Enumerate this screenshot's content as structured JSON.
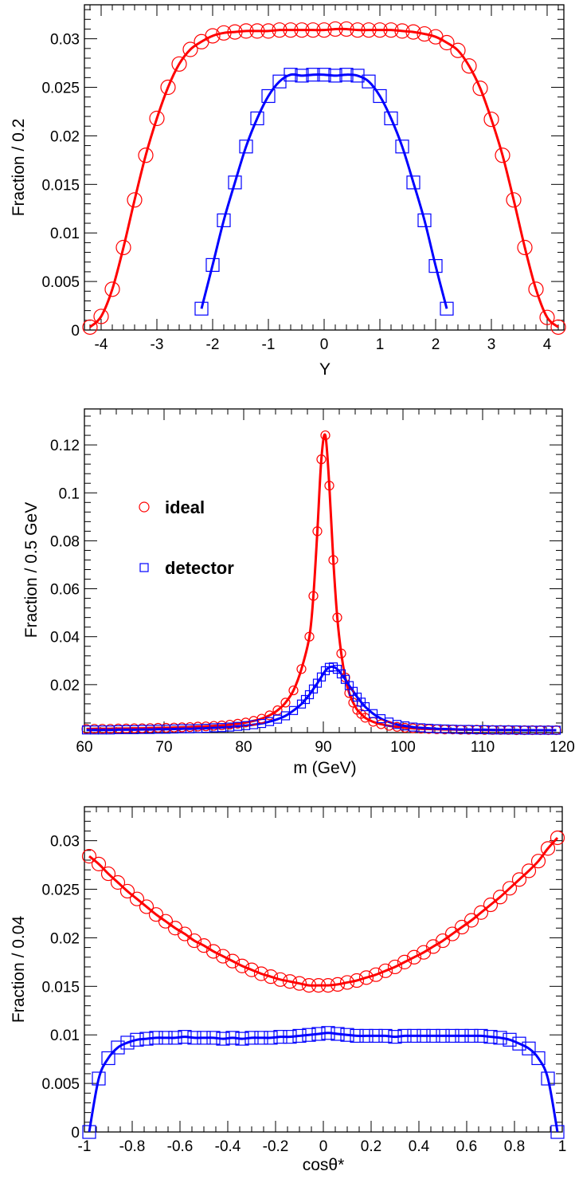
{
  "colors": {
    "ideal": "#ff0000",
    "detector": "#0000ff",
    "axis": "#000000"
  },
  "legend": {
    "placement": "left-middle of middle panel",
    "ideal_label": "ideal",
    "detector_label": "detector"
  },
  "chart_data": [
    {
      "type": "scatter",
      "xlabel": "Y",
      "ylabel": "Fraction / 0.2",
      "xlim": [
        -4.3,
        4.3
      ],
      "ylim": [
        0,
        0.0335
      ],
      "xticks": [
        -4,
        -3,
        -2,
        -1,
        0,
        1,
        2,
        3,
        4
      ],
      "xtick_labels": [
        "-4",
        "-3",
        "-2",
        "-1",
        "0",
        "1",
        "2",
        "3",
        "4"
      ],
      "yticks": [
        0,
        0.005,
        0.01,
        0.015,
        0.02,
        0.025,
        0.03
      ],
      "ytick_labels": [
        "0",
        "0.005",
        "0.01",
        "0.015",
        "0.02",
        "0.025",
        "0.03"
      ],
      "series": [
        {
          "key": "ideal",
          "marker": "circle",
          "x": [
            -4.2,
            -4.0,
            -3.8,
            -3.6,
            -3.4,
            -3.2,
            -3.0,
            -2.8,
            -2.6,
            -2.4,
            -2.2,
            -2.0,
            -1.8,
            -1.6,
            -1.4,
            -1.2,
            -1.0,
            -0.8,
            -0.6,
            -0.4,
            -0.2,
            0.0,
            0.2,
            0.4,
            0.6,
            0.8,
            1.0,
            1.2,
            1.4,
            1.6,
            1.8,
            2.0,
            2.2,
            2.4,
            2.6,
            2.8,
            3.0,
            3.2,
            3.4,
            3.6,
            3.8,
            4.0,
            4.2
          ],
          "y": [
            0.0003,
            0.0014,
            0.0042,
            0.0085,
            0.0134,
            0.018,
            0.0218,
            0.025,
            0.0274,
            0.0289,
            0.0297,
            0.0303,
            0.0306,
            0.0307,
            0.0308,
            0.0308,
            0.0308,
            0.0309,
            0.0309,
            0.0309,
            0.0309,
            0.0309,
            0.031,
            0.031,
            0.0309,
            0.0309,
            0.0309,
            0.0309,
            0.0308,
            0.0307,
            0.0305,
            0.0302,
            0.0296,
            0.0288,
            0.0272,
            0.0249,
            0.0217,
            0.018,
            0.0134,
            0.0085,
            0.0042,
            0.0013,
            0.0003
          ]
        },
        {
          "key": "detector",
          "marker": "square",
          "x": [
            -2.2,
            -2.0,
            -1.8,
            -1.6,
            -1.4,
            -1.2,
            -1.0,
            -0.8,
            -0.6,
            -0.4,
            -0.2,
            0.0,
            0.2,
            0.4,
            0.6,
            0.8,
            1.0,
            1.2,
            1.4,
            1.6,
            1.8,
            2.0,
            2.2
          ],
          "y": [
            0.0022,
            0.0067,
            0.0113,
            0.0152,
            0.0189,
            0.0218,
            0.0241,
            0.0256,
            0.0263,
            0.0262,
            0.0263,
            0.0263,
            0.0262,
            0.0263,
            0.0262,
            0.0256,
            0.0241,
            0.0218,
            0.0189,
            0.0152,
            0.0113,
            0.0066,
            0.0022
          ]
        }
      ]
    },
    {
      "type": "scatter",
      "xlabel": "m (GeV)",
      "ylabel": "Fraction / 0.5 GeV",
      "xlim": [
        60,
        120
      ],
      "ylim": [
        0,
        0.135
      ],
      "xticks": [
        60,
        70,
        80,
        90,
        100,
        110,
        120
      ],
      "xtick_labels": [
        "60",
        "70",
        "80",
        "90",
        "100",
        "110",
        "120"
      ],
      "yticks": [
        0.02,
        0.04,
        0.06,
        0.08,
        0.1,
        0.12
      ],
      "ytick_labels": [
        "0.02",
        "0.04",
        "0.06",
        "0.08",
        "0.1",
        "0.12"
      ],
      "series": [
        {
          "key": "ideal",
          "marker": "circle",
          "x": [
            60.25,
            61.25,
            62.25,
            63.25,
            64.25,
            65.25,
            66.25,
            67.25,
            68.25,
            69.25,
            70.25,
            71.25,
            72.25,
            73.25,
            74.25,
            75.25,
            76.25,
            77.25,
            78.25,
            79.25,
            80.25,
            81.25,
            82.25,
            83.25,
            84.25,
            85.25,
            86.25,
            87.25,
            88.25,
            88.75,
            89.25,
            89.75,
            90.25,
            90.75,
            91.25,
            91.75,
            92.25,
            92.75,
            93.25,
            93.75,
            94.25,
            94.75,
            95.25,
            96.25,
            97.25,
            98.25,
            99.25,
            100.25,
            101.25,
            102.25,
            103.25,
            104.25,
            105.25,
            106.25,
            107.25,
            108.25,
            109.25,
            110.25,
            111.25,
            112.25,
            113.25,
            114.25,
            115.25,
            116.25,
            117.25,
            118.25,
            119.25
          ],
          "y": [
            0.0015,
            0.0016,
            0.0016,
            0.0016,
            0.0017,
            0.0017,
            0.0018,
            0.0018,
            0.0019,
            0.002,
            0.002,
            0.0021,
            0.0022,
            0.0023,
            0.0025,
            0.0026,
            0.0028,
            0.003,
            0.0033,
            0.0037,
            0.0042,
            0.0049,
            0.0058,
            0.0072,
            0.0093,
            0.0125,
            0.0176,
            0.0265,
            0.04,
            0.057,
            0.084,
            0.114,
            0.124,
            0.103,
            0.072,
            0.048,
            0.033,
            0.023,
            0.0165,
            0.0125,
            0.0095,
            0.0078,
            0.0062,
            0.0045,
            0.0035,
            0.0028,
            0.0024,
            0.002,
            0.0018,
            0.0016,
            0.0015,
            0.0014,
            0.0013,
            0.0013,
            0.0012,
            0.0012,
            0.0012,
            0.0011,
            0.0011,
            0.0011,
            0.0011,
            0.001,
            0.001,
            0.001,
            0.001,
            0.001,
            0.001
          ]
        },
        {
          "key": "detector",
          "marker": "square",
          "x": [
            60.25,
            61.25,
            62.25,
            63.25,
            64.25,
            65.25,
            66.25,
            67.25,
            68.25,
            69.25,
            70.25,
            71.25,
            72.25,
            73.25,
            74.25,
            75.25,
            76.25,
            77.25,
            78.25,
            79.25,
            80.25,
            81.25,
            82.25,
            83.25,
            84.25,
            85.25,
            86.25,
            87.25,
            87.75,
            88.25,
            88.75,
            89.25,
            89.75,
            90.25,
            90.75,
            91.25,
            91.75,
            92.25,
            92.75,
            93.25,
            93.75,
            94.25,
            94.75,
            95.25,
            96.25,
            97.25,
            98.25,
            99.25,
            100.25,
            101.25,
            102.25,
            103.25,
            104.25,
            105.25,
            106.25,
            107.25,
            108.25,
            109.25,
            110.25,
            111.25,
            112.25,
            113.25,
            114.25,
            115.25,
            116.25,
            117.25,
            118.25,
            119.25
          ],
          "y": [
            0.0011,
            0.0011,
            0.0011,
            0.0011,
            0.0012,
            0.0012,
            0.0012,
            0.0013,
            0.0013,
            0.0014,
            0.0014,
            0.0015,
            0.0016,
            0.0016,
            0.0017,
            0.0018,
            0.002,
            0.0021,
            0.0023,
            0.0026,
            0.0029,
            0.0033,
            0.0038,
            0.0046,
            0.0056,
            0.007,
            0.0092,
            0.0119,
            0.0138,
            0.0158,
            0.0182,
            0.0206,
            0.0232,
            0.0258,
            0.0272,
            0.0274,
            0.0264,
            0.0245,
            0.0222,
            0.0196,
            0.0172,
            0.0148,
            0.0127,
            0.0108,
            0.0079,
            0.0058,
            0.0044,
            0.0034,
            0.0028,
            0.0023,
            0.002,
            0.0018,
            0.0016,
            0.0015,
            0.0014,
            0.0013,
            0.0013,
            0.0012,
            0.0012,
            0.0011,
            0.0011,
            0.0011,
            0.0011,
            0.001,
            0.001,
            0.001,
            0.001,
            0.001
          ]
        }
      ]
    },
    {
      "type": "scatter",
      "xlabel": "cosθ*",
      "ylabel": "Fraction / 0.04",
      "xlim": [
        -1,
        1
      ],
      "ylim": [
        0,
        0.0335
      ],
      "xticks": [
        -1,
        -0.8,
        -0.6,
        -0.4,
        -0.2,
        0,
        0.2,
        0.4,
        0.6,
        0.8,
        1
      ],
      "xtick_labels": [
        "-1",
        "-0.8",
        "-0.6",
        "-0.4",
        "-0.2",
        "0",
        "0.2",
        "0.4",
        "0.6",
        "0.8",
        "1"
      ],
      "yticks": [
        0,
        0.005,
        0.01,
        0.015,
        0.02,
        0.025,
        0.03
      ],
      "ytick_labels": [
        "0",
        "0.005",
        "0.01",
        "0.015",
        "0.02",
        "0.025",
        "0.03"
      ],
      "series": [
        {
          "key": "ideal",
          "marker": "circle",
          "x": [
            -0.98,
            -0.94,
            -0.9,
            -0.86,
            -0.82,
            -0.78,
            -0.74,
            -0.7,
            -0.66,
            -0.62,
            -0.58,
            -0.54,
            -0.5,
            -0.46,
            -0.42,
            -0.38,
            -0.34,
            -0.3,
            -0.26,
            -0.22,
            -0.18,
            -0.14,
            -0.1,
            -0.06,
            -0.02,
            0.02,
            0.06,
            0.1,
            0.14,
            0.18,
            0.22,
            0.26,
            0.3,
            0.34,
            0.38,
            0.42,
            0.46,
            0.5,
            0.54,
            0.58,
            0.62,
            0.66,
            0.7,
            0.74,
            0.78,
            0.82,
            0.86,
            0.9,
            0.94,
            0.98
          ],
          "y": [
            0.0284,
            0.0276,
            0.0266,
            0.0257,
            0.0248,
            0.024,
            0.0232,
            0.0224,
            0.0217,
            0.021,
            0.0204,
            0.0197,
            0.0192,
            0.0186,
            0.0181,
            0.0176,
            0.0171,
            0.0167,
            0.0163,
            0.016,
            0.0157,
            0.0155,
            0.0153,
            0.0151,
            0.0151,
            0.0151,
            0.0152,
            0.0154,
            0.0156,
            0.0159,
            0.0162,
            0.0166,
            0.017,
            0.0175,
            0.018,
            0.0185,
            0.0191,
            0.0197,
            0.0204,
            0.0211,
            0.0218,
            0.0226,
            0.0234,
            0.0242,
            0.0251,
            0.026,
            0.0269,
            0.0279,
            0.0292,
            0.0303
          ]
        },
        {
          "key": "detector",
          "marker": "square",
          "x": [
            -0.98,
            -0.94,
            -0.9,
            -0.86,
            -0.82,
            -0.78,
            -0.74,
            -0.7,
            -0.66,
            -0.62,
            -0.58,
            -0.54,
            -0.5,
            -0.46,
            -0.42,
            -0.38,
            -0.34,
            -0.3,
            -0.26,
            -0.22,
            -0.18,
            -0.14,
            -0.1,
            -0.06,
            -0.02,
            0.02,
            0.06,
            0.1,
            0.14,
            0.18,
            0.22,
            0.26,
            0.3,
            0.34,
            0.38,
            0.42,
            0.46,
            0.5,
            0.54,
            0.58,
            0.62,
            0.66,
            0.7,
            0.74,
            0.78,
            0.82,
            0.86,
            0.9,
            0.94,
            0.98
          ],
          "y": [
            0.0,
            0.0055,
            0.0076,
            0.0087,
            0.0092,
            0.0095,
            0.0096,
            0.0097,
            0.0097,
            0.0097,
            0.0098,
            0.0097,
            0.0097,
            0.0097,
            0.0096,
            0.0097,
            0.0096,
            0.0097,
            0.0097,
            0.0097,
            0.0098,
            0.0098,
            0.0099,
            0.01,
            0.0101,
            0.0102,
            0.0101,
            0.01,
            0.0099,
            0.0099,
            0.0099,
            0.0099,
            0.0098,
            0.0099,
            0.0099,
            0.0099,
            0.0099,
            0.0099,
            0.0099,
            0.0099,
            0.0099,
            0.0099,
            0.0098,
            0.0097,
            0.0095,
            0.0091,
            0.0086,
            0.0076,
            0.0055,
            0.0
          ]
        }
      ]
    }
  ]
}
